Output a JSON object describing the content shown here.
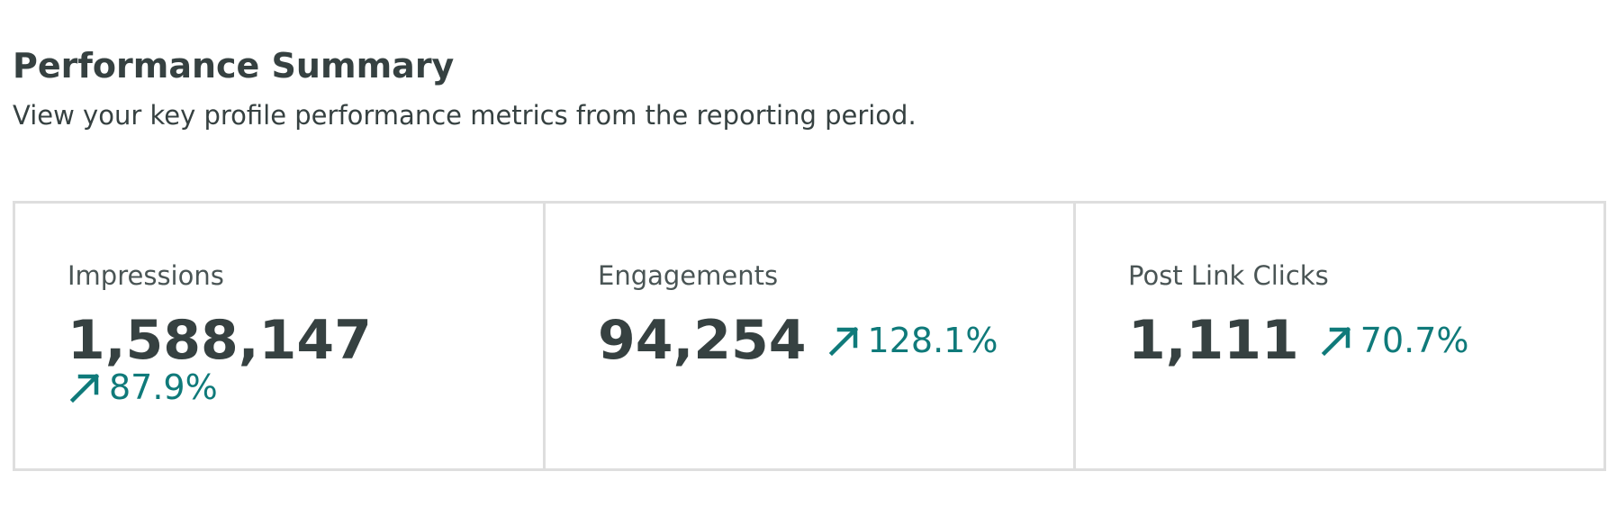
{
  "header": {
    "title": "Performance Summary",
    "subtitle": "View your key profile performance metrics from the reporting period."
  },
  "metrics": [
    {
      "label": "Impressions",
      "value": "1,588,147",
      "change": "87.9%",
      "trend_icon": "arrow-up-right-icon"
    },
    {
      "label": "Engagements",
      "value": "94,254",
      "change": "128.1%",
      "trend_icon": "arrow-up-right-icon"
    },
    {
      "label": "Post Link Clicks",
      "value": "1,111",
      "change": "70.7%",
      "trend_icon": "arrow-up-right-icon"
    }
  ],
  "colors": {
    "text": "#364141",
    "trend_up": "#0f7a7a",
    "border": "#dedede"
  }
}
